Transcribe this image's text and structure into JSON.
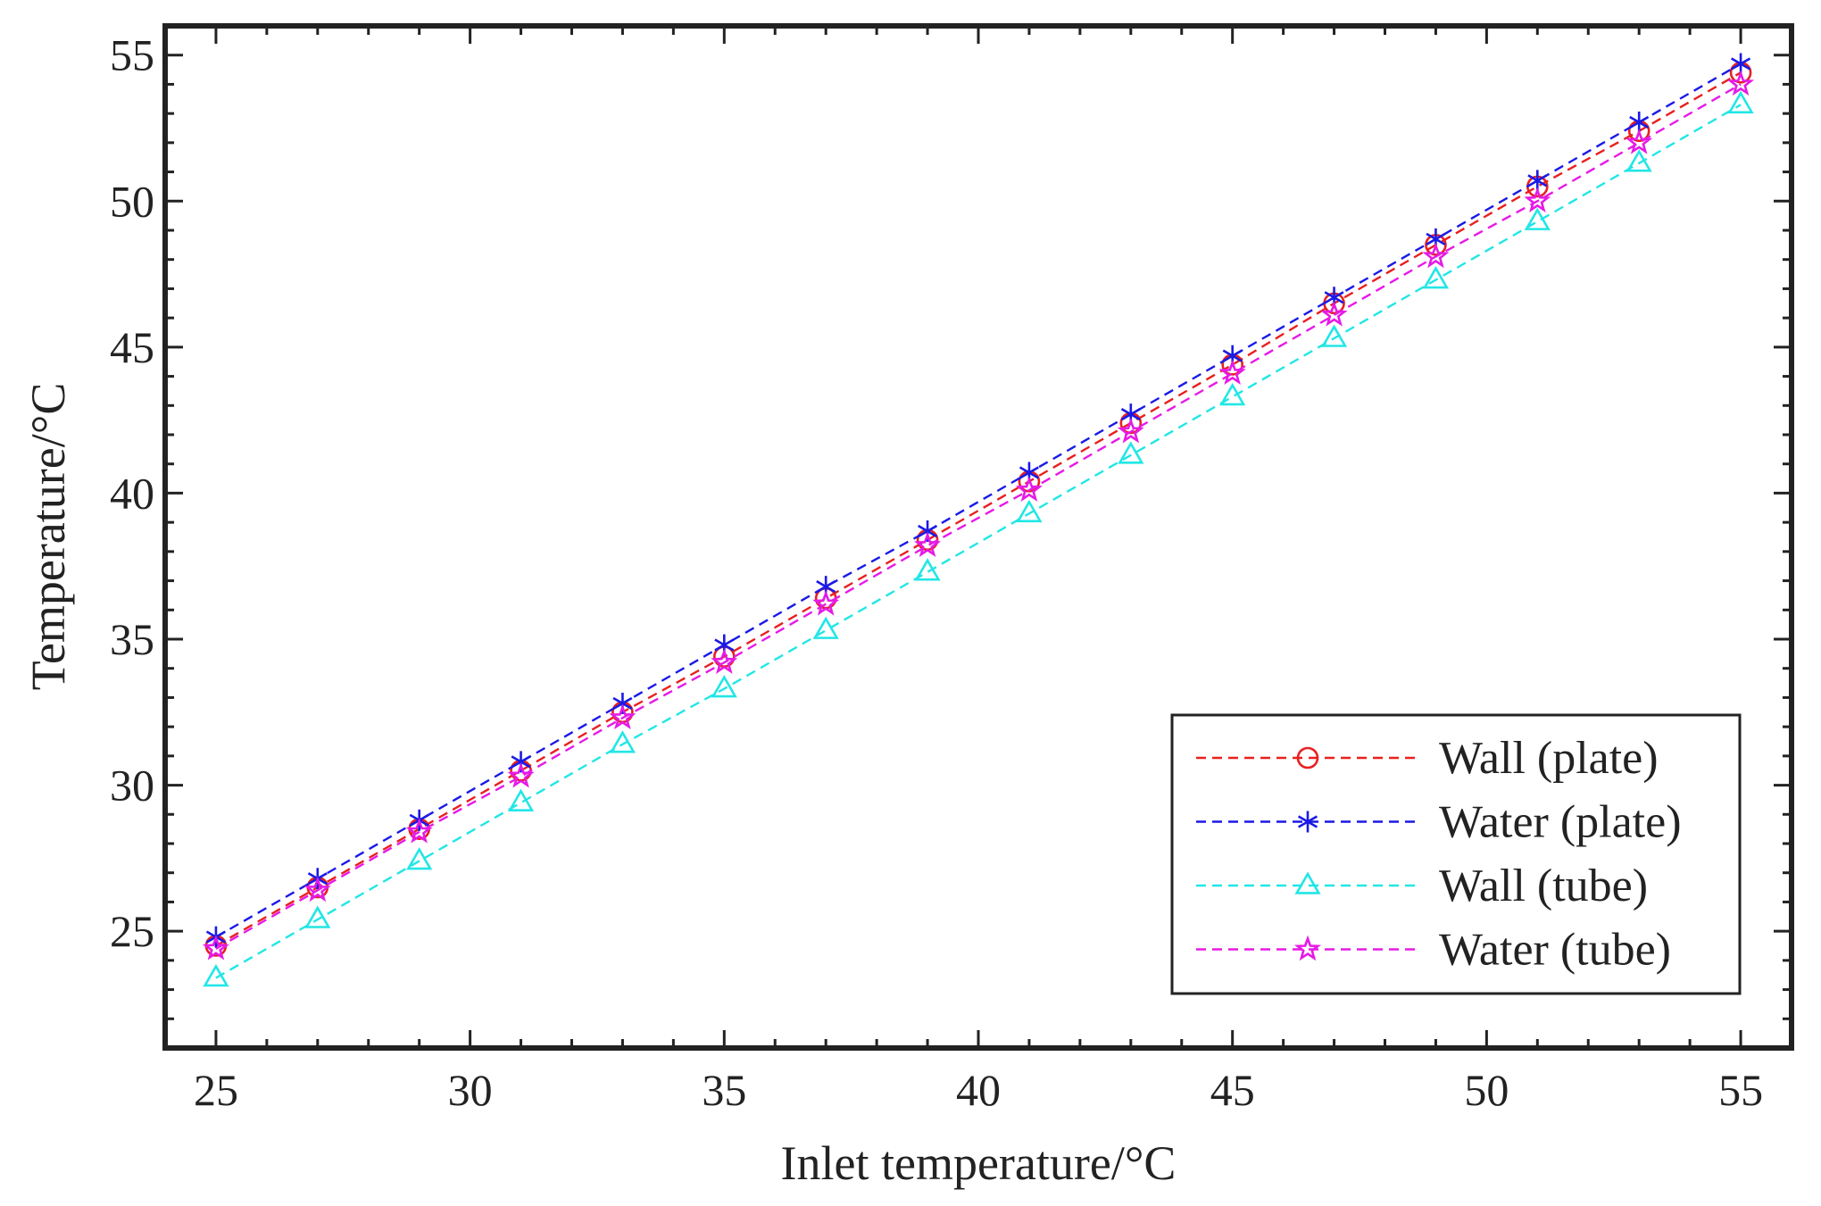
{
  "chart_data": {
    "type": "line",
    "title": "",
    "xlabel": "Inlet temperature/°C",
    "ylabel": "Temperature/°C",
    "x_ticks": [
      25,
      30,
      35,
      40,
      45,
      50,
      55
    ],
    "y_ticks": [
      25,
      30,
      35,
      40,
      45,
      50,
      55
    ],
    "xlim": [
      24,
      56
    ],
    "ylim": [
      21.0,
      56.0
    ],
    "grid": false,
    "legend_position": "bottom-right",
    "x": [
      25,
      27,
      29,
      31,
      33,
      35,
      37,
      39,
      41,
      43,
      45,
      47,
      49,
      51,
      53,
      55
    ],
    "series": [
      {
        "name": "Wall (plate)",
        "color": "#e8201f",
        "marker": "circle",
        "values": [
          24.5,
          26.5,
          28.5,
          30.5,
          32.5,
          34.4,
          36.4,
          38.4,
          40.4,
          42.4,
          44.4,
          46.5,
          48.5,
          50.5,
          52.4,
          54.4
        ]
      },
      {
        "name": "Water (plate)",
        "color": "#1a1ae6",
        "marker": "asterisk",
        "values": [
          24.8,
          26.8,
          28.8,
          30.8,
          32.8,
          34.8,
          36.8,
          38.7,
          40.7,
          42.7,
          44.7,
          46.7,
          48.7,
          50.7,
          52.7,
          54.7
        ]
      },
      {
        "name": "Wall (tube)",
        "color": "#22e6e6",
        "marker": "triangle",
        "values": [
          23.4,
          25.4,
          27.4,
          29.4,
          31.4,
          33.3,
          35.3,
          37.3,
          39.3,
          41.3,
          43.3,
          45.3,
          47.3,
          49.3,
          51.3,
          53.3
        ]
      },
      {
        "name": "Water (tube)",
        "color": "#e61ae6",
        "marker": "star",
        "values": [
          24.4,
          26.4,
          28.4,
          30.3,
          32.3,
          34.2,
          36.2,
          38.2,
          40.1,
          42.1,
          44.1,
          46.1,
          48.1,
          50.0,
          52.0,
          54.0
        ]
      }
    ]
  }
}
